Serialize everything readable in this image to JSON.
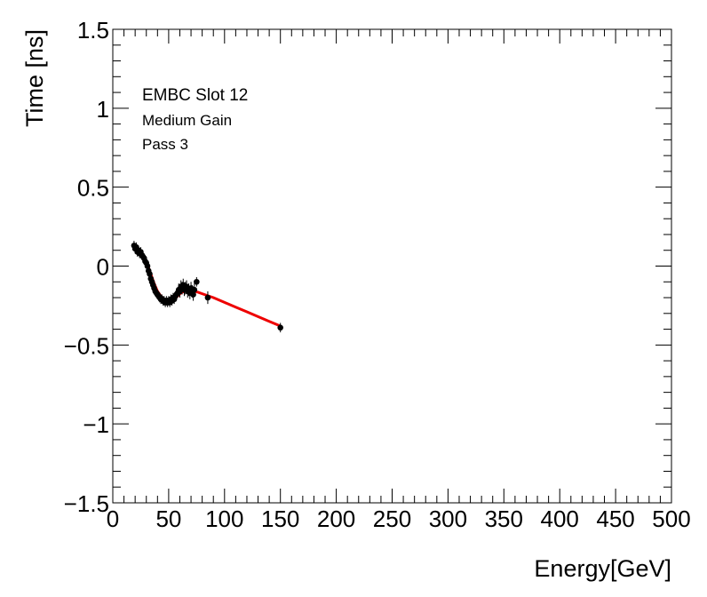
{
  "chart_data": {
    "type": "scatter",
    "title": "",
    "xlabel": "Energy[GeV]",
    "ylabel": "Time [ns]",
    "xlim": [
      0,
      500
    ],
    "ylim": [
      -1.5,
      1.5
    ],
    "x_ticks": [
      0,
      50,
      100,
      150,
      200,
      250,
      300,
      350,
      400,
      450,
      500
    ],
    "y_ticks": [
      -1.5,
      -1,
      -0.5,
      0,
      0.5,
      1,
      1.5
    ],
    "x_tick_labels": [
      "0",
      "50",
      "100",
      "150",
      "200",
      "250",
      "300",
      "350",
      "400",
      "450",
      "500"
    ],
    "y_tick_labels": [
      "−1.5",
      "−1",
      "−0.5",
      "0",
      "0.5",
      "1",
      "1.5"
    ],
    "annotations": [
      "EMBC Slot 12",
      "Medium Gain",
      "Pass 3"
    ],
    "colors": {
      "points": "#000000",
      "fit": "#ee0000"
    },
    "series": [
      {
        "name": "data",
        "x": [
          19,
          20,
          21,
          22,
          23,
          24,
          25,
          26,
          27,
          28,
          29,
          30,
          31,
          32,
          33,
          34,
          35,
          36,
          37,
          38,
          39,
          40,
          41,
          42,
          43,
          44,
          45,
          46,
          47,
          48,
          49,
          50,
          51,
          52,
          53,
          54,
          55,
          56,
          57,
          58,
          59,
          60,
          61,
          62,
          63,
          64,
          65,
          66,
          67,
          68,
          69,
          70,
          71,
          72,
          73,
          75,
          85,
          150
        ],
        "y": [
          0.13,
          0.11,
          0.12,
          0.09,
          0.1,
          0.08,
          0.09,
          0.07,
          0.06,
          0.05,
          0.03,
          0.02,
          0.0,
          -0.03,
          -0.05,
          -0.08,
          -0.1,
          -0.12,
          -0.14,
          -0.16,
          -0.17,
          -0.18,
          -0.19,
          -0.2,
          -0.21,
          -0.21,
          -0.22,
          -0.22,
          -0.23,
          -0.22,
          -0.23,
          -0.22,
          -0.23,
          -0.21,
          -0.22,
          -0.2,
          -0.21,
          -0.19,
          -0.18,
          -0.17,
          -0.15,
          -0.16,
          -0.13,
          -0.14,
          -0.12,
          -0.15,
          -0.14,
          -0.13,
          -0.16,
          -0.15,
          -0.17,
          -0.14,
          -0.16,
          -0.18,
          -0.15,
          -0.1,
          -0.2,
          -0.39
        ],
        "errors": [
          0.03,
          0.03,
          0.03,
          0.03,
          0.03,
          0.03,
          0.03,
          0.03,
          0.03,
          0.03,
          0.03,
          0.03,
          0.03,
          0.03,
          0.03,
          0.03,
          0.03,
          0.03,
          0.03,
          0.03,
          0.03,
          0.03,
          0.03,
          0.03,
          0.03,
          0.03,
          0.03,
          0.03,
          0.03,
          0.03,
          0.03,
          0.03,
          0.03,
          0.03,
          0.03,
          0.03,
          0.03,
          0.03,
          0.03,
          0.03,
          0.04,
          0.04,
          0.04,
          0.04,
          0.04,
          0.04,
          0.04,
          0.04,
          0.04,
          0.04,
          0.04,
          0.04,
          0.04,
          0.04,
          0.04,
          0.03,
          0.04,
          0.03
        ]
      },
      {
        "name": "fit",
        "x": [
          19,
          22,
          25,
          28,
          31,
          34,
          37,
          40,
          43,
          46,
          49,
          52,
          55,
          58,
          61,
          64,
          67,
          70,
          73,
          76,
          80,
          90,
          100,
          110,
          120,
          130,
          140,
          150
        ],
        "y": [
          0.12,
          0.1,
          0.08,
          0.05,
          0.01,
          -0.05,
          -0.11,
          -0.16,
          -0.19,
          -0.21,
          -0.22,
          -0.22,
          -0.21,
          -0.19,
          -0.17,
          -0.16,
          -0.155,
          -0.155,
          -0.16,
          -0.165,
          -0.175,
          -0.2,
          -0.23,
          -0.26,
          -0.29,
          -0.32,
          -0.35,
          -0.38
        ]
      }
    ]
  }
}
